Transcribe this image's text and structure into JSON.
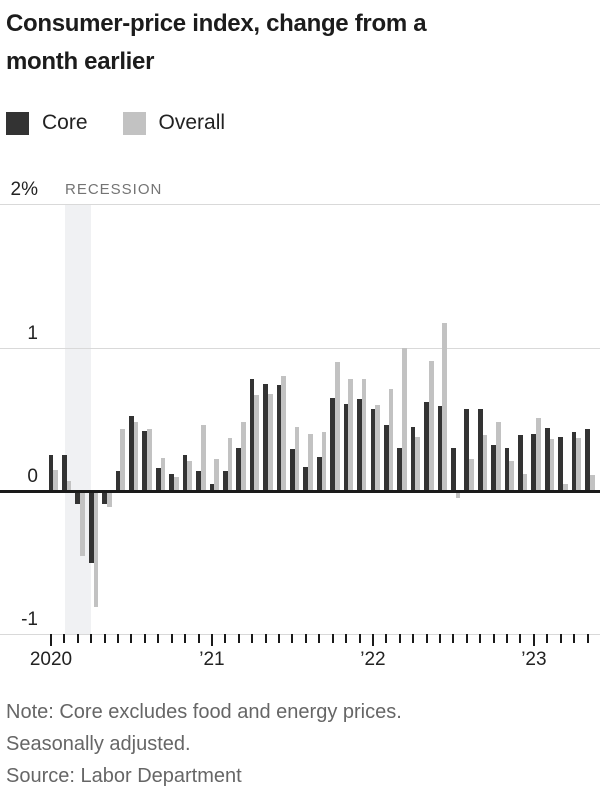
{
  "header": {
    "title_line1": "Consumer-price index, change from a",
    "title_line2": "month earlier"
  },
  "legend": {
    "items": [
      {
        "label": "Core",
        "color": "#333333"
      },
      {
        "label": "Overall",
        "color": "#c2c2c2"
      }
    ]
  },
  "chart_data": {
    "type": "bar",
    "title": "Consumer-price index, change from a month earlier",
    "unit": "percent",
    "ylim": [
      -1,
      2
    ],
    "grid": true,
    "y_ticks": [
      {
        "label": "2%",
        "value": 2
      },
      {
        "label": "1",
        "value": 1
      },
      {
        "label": "0",
        "value": 0
      },
      {
        "label": "-1",
        "value": -1
      }
    ],
    "x_year_labels": [
      {
        "label": "2020",
        "month_index": 0
      },
      {
        "label": "’21",
        "month_index": 12
      },
      {
        "label": "’22",
        "month_index": 24
      },
      {
        "label": "’23",
        "month_index": 36
      }
    ],
    "months": [
      "2020-01",
      "2020-02",
      "2020-03",
      "2020-04",
      "2020-05",
      "2020-06",
      "2020-07",
      "2020-08",
      "2020-09",
      "2020-10",
      "2020-11",
      "2020-12",
      "2021-01",
      "2021-02",
      "2021-03",
      "2021-04",
      "2021-05",
      "2021-06",
      "2021-07",
      "2021-08",
      "2021-09",
      "2021-10",
      "2021-11",
      "2021-12",
      "2022-01",
      "2022-02",
      "2022-03",
      "2022-04",
      "2022-05",
      "2022-06",
      "2022-07",
      "2022-08",
      "2022-09",
      "2022-10",
      "2022-11",
      "2022-12",
      "2023-01",
      "2023-02",
      "2023-03",
      "2023-04",
      "2023-05"
    ],
    "series": [
      {
        "name": "Core",
        "color": "#333333",
        "values": [
          0.25,
          0.25,
          -0.08,
          -0.49,
          -0.08,
          0.14,
          0.52,
          0.42,
          0.16,
          0.12,
          0.25,
          0.14,
          0.05,
          0.14,
          0.3,
          0.78,
          0.75,
          0.74,
          0.29,
          0.17,
          0.24,
          0.65,
          0.61,
          0.64,
          0.57,
          0.46,
          0.3,
          0.45,
          0.62,
          0.59,
          0.3,
          0.57,
          0.57,
          0.32,
          0.3,
          0.39,
          0.4,
          0.44,
          0.38,
          0.41,
          0.43
        ]
      },
      {
        "name": "Overall",
        "color": "#c2c2c2",
        "values": [
          0.15,
          0.07,
          -0.44,
          -0.8,
          -0.1,
          0.43,
          0.48,
          0.43,
          0.23,
          0.1,
          0.21,
          0.46,
          0.22,
          0.37,
          0.48,
          0.67,
          0.68,
          0.8,
          0.45,
          0.4,
          0.41,
          0.9,
          0.78,
          0.78,
          0.6,
          0.71,
          1.0,
          0.38,
          0.91,
          1.17,
          -0.04,
          0.22,
          0.39,
          0.48,
          0.21,
          0.12,
          0.51,
          0.36,
          0.05,
          0.37,
          0.11
        ]
      }
    ],
    "annotations": {
      "recession": {
        "label": "RECESSION",
        "start_month": "2020-02",
        "end_month": "2020-04"
      }
    },
    "legend_position": "top-left"
  },
  "footer": {
    "note_line1": "Note: Core excludes food and energy prices.",
    "note_line2": "Seasonally adjusted.",
    "source": "Source: Labor Department"
  }
}
